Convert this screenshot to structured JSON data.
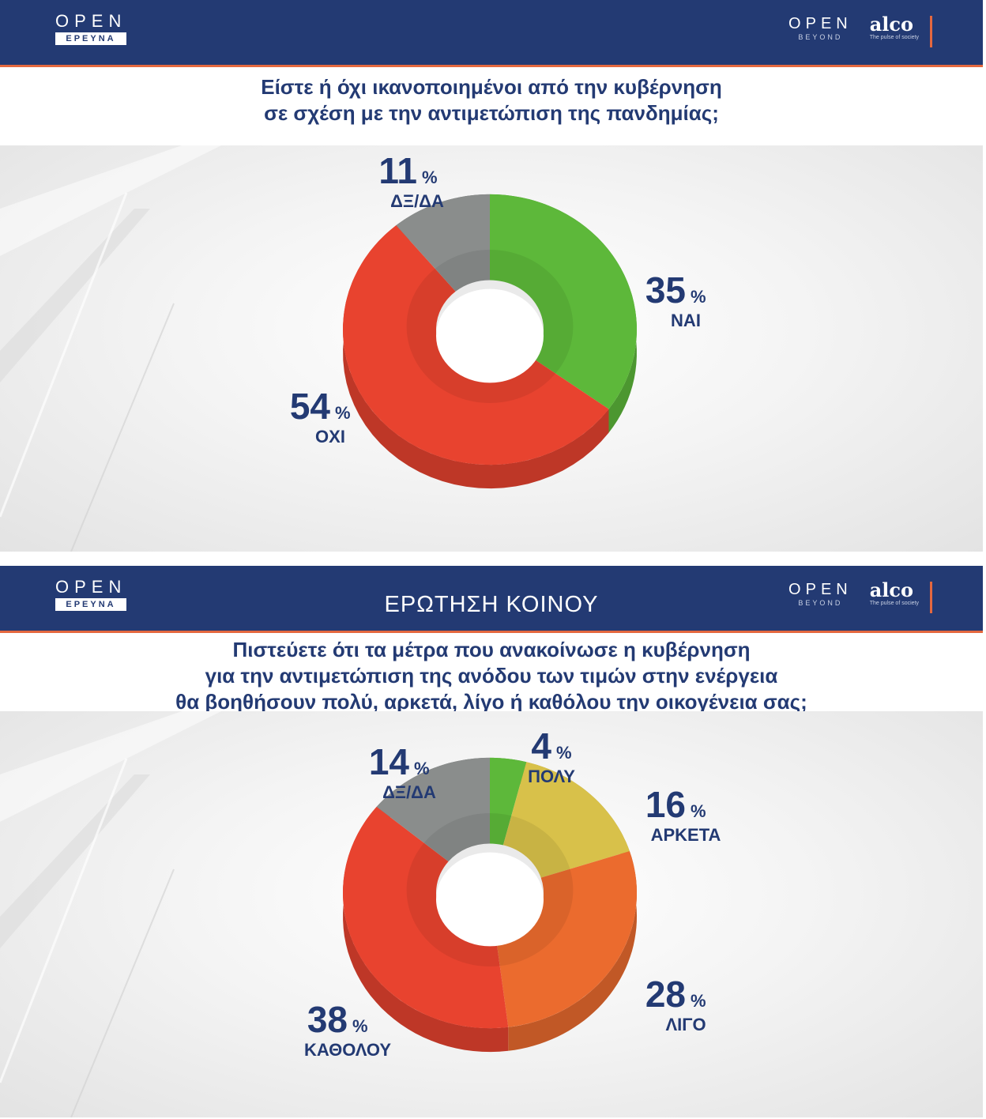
{
  "panels": [
    {
      "header": {
        "logo_left_word": "OPEN",
        "logo_left_sub": "ΕΡΕΥΝΑ",
        "logo_right_word": "OPEN",
        "logo_right_sub": "BEYOND",
        "brand_word": "alco",
        "brand_tagline": "The pulse of society",
        "title": ""
      },
      "question_lines": [
        "Είστε ή όχι ικανοποιημένοι από την κυβέρνηση",
        "σε σχέση με την αντιμετώπιση της πανδημίας;"
      ]
    },
    {
      "header": {
        "logo_left_word": "OPEN",
        "logo_left_sub": "ΕΡΕΥΝΑ",
        "logo_right_word": "OPEN",
        "logo_right_sub": "BEYOND",
        "brand_word": "alco",
        "brand_tagline": "The pulse of society",
        "title": "ΕΡΩΤΗΣΗ ΚΟΙΝΟΥ"
      },
      "question_lines": [
        "Πιστεύετε ότι τα μέτρα που ανακοίνωσε η κυβέρνηση",
        "για την αντιμετώπιση της ανόδου των τιμών στην ενέργεια",
        "θα βοηθήσουν πολύ, αρκετά, λίγο ή καθόλου την οικογένεια σας;"
      ]
    }
  ],
  "chart_data": [
    {
      "type": "pie",
      "title": "Είστε ή όχι ικανοποιημένοι από την κυβέρνηση σε σχέση με την αντιμετώπιση της πανδημίας;",
      "unit": "%",
      "categories": [
        "ΝΑΙ",
        "ΟΧΙ",
        "ΔΞ/ΔΑ"
      ],
      "values": [
        35,
        54,
        11
      ],
      "colors": [
        "#5db83a",
        "#e8432f",
        "#8a8d8c"
      ],
      "label_side": [
        "right",
        "left",
        "top"
      ]
    },
    {
      "type": "pie",
      "title": "Πιστεύετε ότι τα μέτρα που ανακοίνωσε η κυβέρνηση για την αντιμετώπιση της ανόδου των τιμών στην ενέργεια θα βοηθήσουν πολύ, αρκετά, λίγο ή καθόλου την οικογένεια σας;",
      "unit": "%",
      "categories": [
        "ΠΟΛΥ",
        "ΑΡΚΕΤΑ",
        "ΛΙΓΟ",
        "ΚΑΘΟΛΟΥ",
        "ΔΞ/ΔΑ"
      ],
      "values": [
        4,
        16,
        28,
        38,
        14
      ],
      "colors": [
        "#5db83a",
        "#d8c14a",
        "#eb6b2e",
        "#e8432f",
        "#8a8d8c"
      ],
      "label_side": [
        "top",
        "right",
        "right",
        "left",
        "top"
      ]
    }
  ]
}
